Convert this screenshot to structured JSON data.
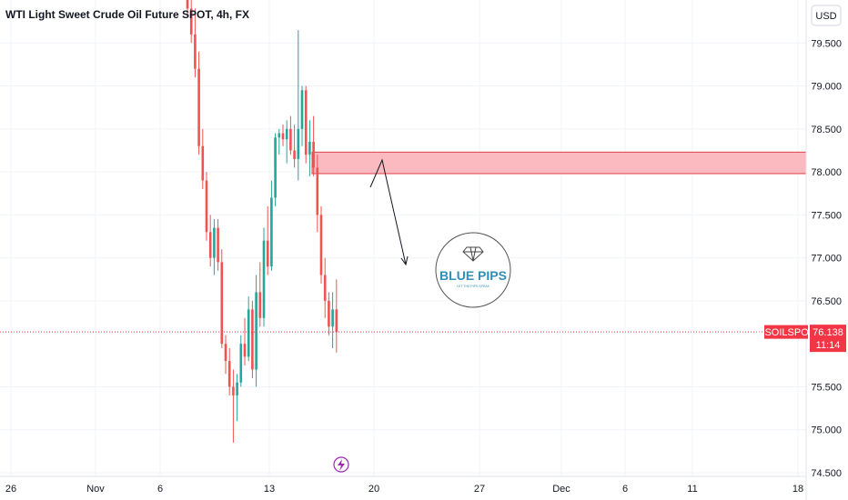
{
  "chart_data": {
    "type": "candlestick",
    "title": "WTI Light Sweet Crude Oil Future SPOT, 4h, FX",
    "currency": "USD",
    "ylim": [
      74.5,
      80.0
    ],
    "y_ticks": [
      "79.500",
      "79.000",
      "78.500",
      "78.000",
      "77.500",
      "77.000",
      "76.500",
      "75.500",
      "75.000",
      "74.500"
    ],
    "x_ticks": [
      "26",
      "Nov",
      "6",
      "13",
      "20",
      "27",
      "Dec",
      "6",
      "11",
      "18"
    ],
    "symbol": "USOILSPOT",
    "last_price": "76.138",
    "last_price_value": 76.138,
    "countdown": "11:14",
    "zone": {
      "low": 77.98,
      "high": 78.23
    },
    "logo": {
      "name": "BLUE PIPS",
      "tagline": "LET THE PIPS SPEAK"
    },
    "colors": {
      "up": "#26a69a",
      "down": "#ef5350",
      "zone_fill": "#f9b3b8",
      "zone_border": "#e0404a",
      "badge": "#f23645",
      "grid": "#f0f3fa",
      "logo": "#2f8fb8"
    },
    "candles": [
      {
        "o": 80.3,
        "h": 80.6,
        "l": 79.8,
        "c": 79.9
      },
      {
        "o": 79.9,
        "h": 80.1,
        "l": 79.5,
        "c": 79.6
      },
      {
        "o": 79.6,
        "h": 79.9,
        "l": 79.1,
        "c": 79.2
      },
      {
        "o": 79.2,
        "h": 79.4,
        "l": 78.2,
        "c": 78.3
      },
      {
        "o": 78.3,
        "h": 78.5,
        "l": 77.8,
        "c": 77.9
      },
      {
        "o": 77.9,
        "h": 78.0,
        "l": 77.2,
        "c": 77.3
      },
      {
        "o": 77.3,
        "h": 77.5,
        "l": 76.9,
        "c": 77.0
      },
      {
        "o": 77.0,
        "h": 77.45,
        "l": 76.8,
        "c": 77.35
      },
      {
        "o": 77.35,
        "h": 77.45,
        "l": 76.85,
        "c": 76.95
      },
      {
        "o": 76.95,
        "h": 77.1,
        "l": 75.95,
        "c": 76.0
      },
      {
        "o": 76.0,
        "h": 76.1,
        "l": 75.65,
        "c": 75.8
      },
      {
        "o": 75.8,
        "h": 75.95,
        "l": 75.4,
        "c": 75.5
      },
      {
        "o": 75.5,
        "h": 75.7,
        "l": 74.85,
        "c": 75.4
      },
      {
        "o": 75.4,
        "h": 75.65,
        "l": 75.1,
        "c": 75.55
      },
      {
        "o": 75.55,
        "h": 76.1,
        "l": 75.5,
        "c": 76.0
      },
      {
        "o": 76.0,
        "h": 76.3,
        "l": 75.75,
        "c": 75.85
      },
      {
        "o": 75.85,
        "h": 76.55,
        "l": 75.8,
        "c": 76.4
      },
      {
        "o": 76.4,
        "h": 76.5,
        "l": 75.6,
        "c": 75.7
      },
      {
        "o": 75.7,
        "h": 76.8,
        "l": 75.5,
        "c": 76.6
      },
      {
        "o": 76.6,
        "h": 76.95,
        "l": 76.2,
        "c": 76.3
      },
      {
        "o": 76.3,
        "h": 77.35,
        "l": 76.2,
        "c": 77.2
      },
      {
        "o": 77.2,
        "h": 77.6,
        "l": 76.8,
        "c": 76.9
      },
      {
        "o": 76.9,
        "h": 77.9,
        "l": 76.85,
        "c": 77.7
      },
      {
        "o": 77.7,
        "h": 78.45,
        "l": 77.6,
        "c": 78.4
      },
      {
        "o": 78.4,
        "h": 78.5,
        "l": 78.2,
        "c": 78.45
      },
      {
        "o": 78.45,
        "h": 78.55,
        "l": 78.3,
        "c": 78.38
      },
      {
        "o": 78.38,
        "h": 78.6,
        "l": 78.1,
        "c": 78.5
      },
      {
        "o": 78.5,
        "h": 78.65,
        "l": 78.2,
        "c": 78.25
      },
      {
        "o": 78.25,
        "h": 78.55,
        "l": 78.05,
        "c": 78.15
      },
      {
        "o": 78.15,
        "h": 79.65,
        "l": 77.9,
        "c": 78.5
      },
      {
        "o": 78.5,
        "h": 79.0,
        "l": 78.3,
        "c": 78.95
      },
      {
        "o": 78.95,
        "h": 79.0,
        "l": 78.1,
        "c": 78.2
      },
      {
        "o": 78.2,
        "h": 78.6,
        "l": 77.95,
        "c": 78.35
      },
      {
        "o": 78.35,
        "h": 78.65,
        "l": 77.95,
        "c": 78.05
      },
      {
        "o": 78.05,
        "h": 78.2,
        "l": 77.3,
        "c": 77.5
      },
      {
        "o": 77.5,
        "h": 77.6,
        "l": 76.7,
        "c": 76.8
      },
      {
        "o": 76.8,
        "h": 77.0,
        "l": 76.3,
        "c": 76.5
      },
      {
        "o": 76.5,
        "h": 76.6,
        "l": 76.1,
        "c": 76.2
      },
      {
        "o": 76.2,
        "h": 76.6,
        "l": 75.95,
        "c": 76.4
      },
      {
        "o": 76.4,
        "h": 76.75,
        "l": 75.9,
        "c": 76.138
      }
    ]
  }
}
